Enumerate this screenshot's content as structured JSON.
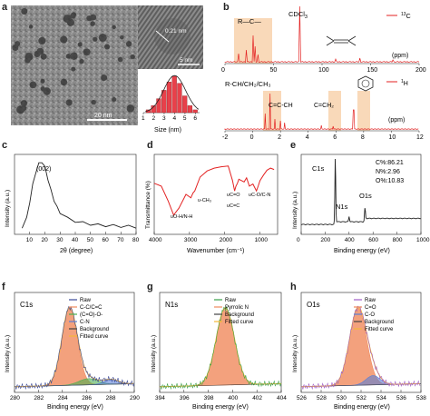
{
  "panel_letters": {
    "a": "a",
    "b": "b",
    "c": "c",
    "d": "d",
    "e": "e",
    "f": "f",
    "g": "g",
    "h": "h"
  },
  "panel_a": {
    "lattice": "0.21 nm",
    "inset_scale": "5 nm",
    "main_scale": "20 nm",
    "hist_xlabel": "Size (nm)",
    "chart_data": {
      "type": "bar",
      "categories": [
        "1.5",
        "2",
        "2.5",
        "3",
        "3.5",
        "4",
        "4.5",
        "5",
        "5.5",
        "6"
      ],
      "x": [
        1.5,
        2.0,
        2.5,
        3.0,
        3.5,
        4.0,
        4.5,
        5.0,
        5.5,
        6.0
      ],
      "values": [
        2,
        5,
        10,
        16,
        22,
        26,
        21,
        12,
        5,
        2
      ],
      "xticks": [
        "1",
        "2",
        "3",
        "4",
        "5",
        "6"
      ],
      "xlabel": "Size (nm)",
      "colors": {
        "bar": "#e8404a",
        "fit": "#222222"
      }
    }
  },
  "panel_b": {
    "top_structure": "R—C—",
    "top_solvent": "CDCl",
    "top_solvent_sub": "3",
    "top_nucleus_sup": "13",
    "top_nucleus": "C",
    "top_unit": "(ppm)",
    "top_ticks": [
      "0",
      "50",
      "100",
      "150",
      "200"
    ],
    "bot_label": "R-CH/CH₂/CH₃",
    "bot_cc": "C=C-CH",
    "bot_ch2": "C=CH₂",
    "bot_nucleus_sup": "1",
    "bot_nucleus": "H",
    "bot_unit": "(ppm)",
    "bot_ticks": [
      "-2",
      "0",
      "2",
      "4",
      "6",
      "8",
      "10",
      "12"
    ],
    "colors": {
      "spectrum": "#e32222",
      "highlight": "#f7cfa8"
    }
  },
  "panel_c": {
    "chart_data": {
      "type": "line",
      "title": "",
      "xlabel": "2θ (degree)",
      "ylabel": "Intensity (a.u.)",
      "xlim": [
        0,
        80
      ],
      "xticks": [
        "10",
        "20",
        "30",
        "40",
        "50",
        "60",
        "70",
        "80"
      ],
      "annotation": "(002)",
      "peak_x": 18,
      "x": [
        5,
        8,
        10,
        12,
        14,
        16,
        18,
        20,
        22,
        24,
        26,
        28,
        30,
        35,
        40,
        45,
        50,
        55,
        60,
        65,
        70,
        75,
        80
      ],
      "values": [
        0.1,
        0.22,
        0.45,
        0.68,
        0.86,
        0.97,
        1.0,
        0.92,
        0.76,
        0.6,
        0.47,
        0.37,
        0.3,
        0.22,
        0.18,
        0.16,
        0.14,
        0.13,
        0.12,
        0.12,
        0.11,
        0.11,
        0.1
      ],
      "colors": {
        "line": "#222222"
      }
    }
  },
  "panel_d": {
    "chart_data": {
      "type": "line",
      "xlabel": "Wavenumber (cm⁻¹)",
      "ylabel": "Transmittance (%)",
      "xlim": [
        4000,
        500
      ],
      "xticks": [
        "4000",
        "3000",
        "2000",
        "1000"
      ],
      "x": [
        4000,
        3800,
        3600,
        3450,
        3300,
        3100,
        2960,
        2900,
        2850,
        2700,
        2500,
        2300,
        2100,
        1900,
        1780,
        1720,
        1680,
        1640,
        1600,
        1450,
        1380,
        1300,
        1200,
        1100,
        1050,
        1000,
        900,
        800,
        700,
        600
      ],
      "values": [
        0.66,
        0.62,
        0.4,
        0.2,
        0.3,
        0.5,
        0.45,
        0.52,
        0.55,
        0.75,
        0.84,
        0.88,
        0.9,
        0.91,
        0.7,
        0.55,
        0.62,
        0.66,
        0.72,
        0.68,
        0.74,
        0.62,
        0.65,
        0.55,
        0.62,
        0.7,
        0.78,
        0.85,
        0.88,
        0.86
      ],
      "annotations": [
        "υO-H/N-H",
        "υ-CH₃",
        "υC=O",
        "υC=C",
        "υC-O/C-N"
      ],
      "colors": {
        "line": "#e32222"
      }
    }
  },
  "panel_e": {
    "chart_data": {
      "type": "line",
      "xlabel": "Binding energy (eV)",
      "ylabel": "Intensity (a.u.)",
      "xlim": [
        0,
        1000
      ],
      "xticks": [
        "0",
        "200",
        "400",
        "600",
        "800",
        "1000"
      ],
      "peaks": [
        {
          "label": "C1s",
          "x": 284.8,
          "height": 1.0
        },
        {
          "label": "N1s",
          "x": 400,
          "height": 0.08
        },
        {
          "label": "O1s",
          "x": 532,
          "height": 0.2
        }
      ],
      "composition": [
        "C%:86.21",
        "N%:2.96",
        "O%:10.83"
      ],
      "colors": {
        "line": "#222222"
      }
    }
  },
  "panel_f": {
    "label": "C1s",
    "legend": [
      "Raw",
      "C-C/C=C",
      "(C=O)-O-",
      "C-N",
      "Background",
      "Fitted curve"
    ],
    "chart_data": {
      "type": "area",
      "xlabel": "Binding energy (eV)",
      "ylabel": "Intensity (a.u.)",
      "xlim": [
        280,
        290
      ],
      "xticks": [
        "280",
        "282",
        "284",
        "286",
        "288",
        "290"
      ],
      "components": [
        {
          "name": "C-C/C=C",
          "center": 284.6,
          "height": 1.0,
          "sigma": 0.65
        },
        {
          "name": "(C=O)-O-",
          "center": 286.2,
          "height": 0.08,
          "sigma": 0.8
        },
        {
          "name": "C-N",
          "center": 288.1,
          "height": 0.06,
          "sigma": 0.6
        }
      ],
      "colors": {
        "raw": "#3b4a9a",
        "c1": "#f08a5d",
        "c2": "#4caf50",
        "c3": "#5a7fd6",
        "bg": "#444444",
        "fit": "#f5b73a"
      }
    }
  },
  "panel_g": {
    "label": "N1s",
    "legend": [
      "Raw",
      "Pyrrolic N",
      "Background",
      "Fitted curve"
    ],
    "chart_data": {
      "type": "area",
      "xlabel": "Binding energy (eV)",
      "ylabel": "Intensity (a.u.)",
      "xlim": [
        394,
        404
      ],
      "xticks": [
        "394",
        "396",
        "398",
        "400",
        "402",
        "404"
      ],
      "components": [
        {
          "name": "Pyrrolic N",
          "center": 399.4,
          "height": 1.0,
          "sigma": 0.75
        }
      ],
      "colors": {
        "raw": "#3aa04a",
        "c1": "#f08a5d",
        "bg": "#444444",
        "fit": "#f5b73a"
      }
    }
  },
  "panel_h": {
    "label": "O1s",
    "legend": [
      "Raw",
      "C=O",
      "C-O",
      "Background",
      "Fitted curve"
    ],
    "chart_data": {
      "type": "area",
      "xlabel": "Binding energy (eV)",
      "ylabel": "Intensity (a.u.)",
      "xlim": [
        526,
        538
      ],
      "xticks": [
        "526",
        "528",
        "530",
        "532",
        "534",
        "536",
        "538"
      ],
      "components": [
        {
          "name": "C=O",
          "center": 531.7,
          "height": 1.0,
          "sigma": 0.85
        },
        {
          "name": "C-O",
          "center": 533.2,
          "height": 0.12,
          "sigma": 0.7
        }
      ],
      "colors": {
        "raw": "#a05ec8",
        "c1": "#f08a5d",
        "c2": "#5a7fd6",
        "bg": "#444444",
        "fit": "#f5b73a"
      }
    }
  }
}
